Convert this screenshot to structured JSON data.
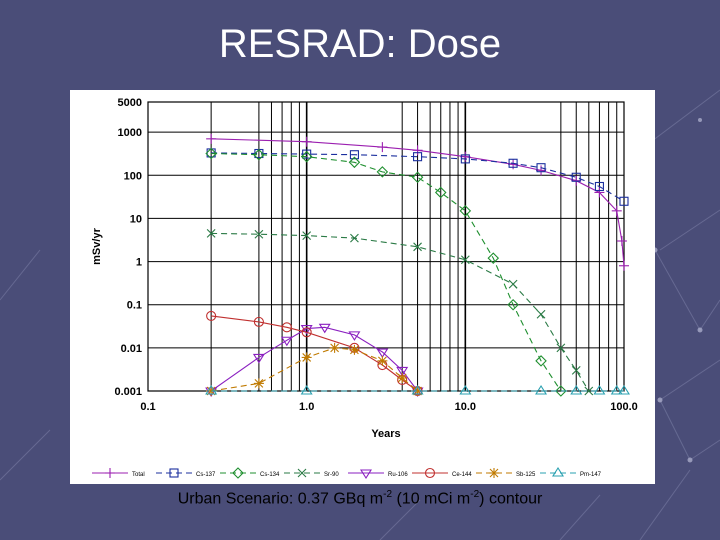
{
  "slide": {
    "title": "RESRAD: Dose",
    "caption_parts": [
      "Urban Scenario: 0.37 GBq m",
      "-2",
      " (10 mCi m",
      "-2",
      ") contour"
    ]
  },
  "colors": {
    "background": "#4a4d78",
    "panel": "#ffffff",
    "grid": "#000000"
  },
  "chart_data": {
    "type": "line",
    "title": "",
    "xlabel": "Years",
    "ylabel": "mSv/yr",
    "xscale": "log",
    "yscale": "log",
    "xlim": [
      0.1,
      100
    ],
    "ylim": [
      0.001,
      5000
    ],
    "x_tick_labels": [
      "0.1",
      "1.0",
      "10.0",
      "100.0"
    ],
    "x_tick_values": [
      0.1,
      1,
      10,
      100
    ],
    "y_tick_labels": [
      "5000",
      "1000",
      "100",
      "10",
      "1",
      "0.1",
      "0.01",
      "0.001"
    ],
    "y_tick_values": [
      5000,
      1000,
      100,
      10,
      1,
      0.1,
      0.01,
      0.001
    ],
    "vertical_gridlines": [
      0.25,
      0.5,
      0.6,
      0.7,
      0.8,
      0.9,
      1,
      4,
      5,
      6,
      7,
      8,
      9,
      10,
      40,
      50,
      60,
      70,
      80,
      90
    ],
    "legend_position": "bottom",
    "series": [
      {
        "name": "Total",
        "color": "#9b1fb0",
        "marker": "plus",
        "dash": "none",
        "x": [
          0.25,
          1,
          3,
          5,
          10,
          20,
          30,
          50,
          70,
          90,
          97,
          100
        ],
        "y": [
          700,
          600,
          450,
          380,
          270,
          180,
          130,
          75,
          40,
          15,
          3,
          0.8
        ]
      },
      {
        "name": "Cs-137",
        "color": "#1b2f9e",
        "marker": "square",
        "dash": "6,4",
        "x": [
          0.25,
          0.5,
          1,
          2,
          5,
          10,
          20,
          30,
          50,
          70,
          100
        ],
        "y": [
          330,
          320,
          310,
          300,
          270,
          240,
          190,
          150,
          90,
          55,
          25
        ]
      },
      {
        "name": "Cs-134",
        "color": "#1f8f2f",
        "marker": "diamond",
        "dash": "6,4",
        "x": [
          0.25,
          0.5,
          1,
          2,
          3,
          5,
          7,
          10,
          15,
          20,
          30,
          40
        ],
        "y": [
          320,
          300,
          270,
          200,
          120,
          90,
          40,
          15,
          1.2,
          0.1,
          0.005,
          0.001
        ]
      },
      {
        "name": "Sr-90",
        "color": "#2a7a45",
        "marker": "x",
        "dash": "6,4",
        "x": [
          0.25,
          0.5,
          1,
          2,
          5,
          10,
          20,
          30,
          40,
          50,
          60
        ],
        "y": [
          4.5,
          4.3,
          4,
          3.5,
          2.2,
          1.1,
          0.3,
          0.06,
          0.01,
          0.003,
          0.001
        ]
      },
      {
        "name": "Ru-106",
        "color": "#8a1fc0",
        "marker": "triangle-down",
        "dash": "none",
        "x": [
          0.25,
          0.5,
          0.75,
          1,
          1.3,
          2,
          3,
          4,
          5
        ],
        "y": [
          0.001,
          0.006,
          0.015,
          0.028,
          0.03,
          0.02,
          0.008,
          0.003,
          0.001
        ]
      },
      {
        "name": "Ce-144",
        "color": "#c0302f",
        "marker": "circle",
        "dash": "none",
        "x": [
          0.25,
          0.5,
          0.75,
          1,
          2,
          3,
          4,
          5
        ],
        "y": [
          0.055,
          0.04,
          0.03,
          0.023,
          0.01,
          0.004,
          0.0018,
          0.001
        ]
      },
      {
        "name": "Sb-125",
        "color": "#c07a00",
        "marker": "star",
        "dash": "6,4",
        "x": [
          0.25,
          0.5,
          1,
          1.5,
          2,
          3,
          4,
          5
        ],
        "y": [
          0.001,
          0.0015,
          0.006,
          0.01,
          0.009,
          0.005,
          0.002,
          0.001
        ]
      },
      {
        "name": "Pm-147",
        "color": "#2aa0b0",
        "marker": "triangle-up",
        "dash": "6,4",
        "x": [
          0.25,
          1,
          5,
          10,
          30,
          50,
          70,
          90,
          100
        ],
        "y": [
          0.001,
          0.001,
          0.001,
          0.001,
          0.001,
          0.001,
          0.001,
          0.001,
          0.001
        ]
      }
    ]
  }
}
